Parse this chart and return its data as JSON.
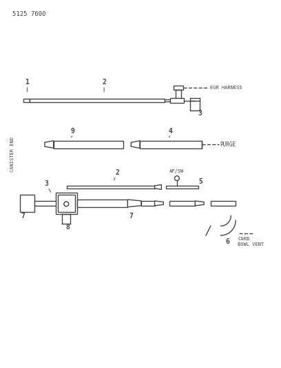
{
  "title": "5125 7600",
  "side_label": "CANISTER END",
  "bg_color": "#ffffff",
  "line_color": "#444444",
  "text_color": "#444444",
  "egr_harness": "EGR HARNESS",
  "purge": "PURGE",
  "ap_sw": "AP/SW",
  "carb_bowl_vent_line1": "CARB",
  "carb_bowl_vent_line2": "BOWL VENT"
}
